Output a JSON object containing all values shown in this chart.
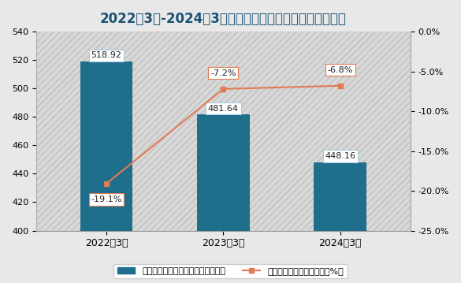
{
  "title": "2022年3月-2024年3月我国办公楼竣工面积累计值及增速",
  "categories": [
    "2022年3月",
    "2023年3月",
    "2024年3月"
  ],
  "bar_values": [
    518.92,
    481.64,
    448.16
  ],
  "bar_color": "#1e6e8c",
  "line_values": [
    -19.1,
    -7.2,
    -6.8
  ],
  "line_color": "#e07b54",
  "left_ylim": [
    400,
    540
  ],
  "left_yticks": [
    400,
    420,
    440,
    460,
    480,
    500,
    520,
    540
  ],
  "right_ylim": [
    -25.0,
    0.0
  ],
  "right_yticks": [
    -25.0,
    -20.0,
    -15.0,
    -10.0,
    -5.0,
    0.0
  ],
  "right_yticklabels": [
    "-25.0%",
    "-20.0%",
    "-15.0%",
    "-10.0%",
    "-5.0%",
    "0.0%"
  ],
  "bar_label_values": [
    "518.92",
    "481.64",
    "448.16"
  ],
  "line_label_values": [
    "-19.1%",
    "-7.2%",
    "-6.8%"
  ],
  "legend_bar": "办公楼竣工面积累计值（万平方米）",
  "legend_line": "办公楼竣工面积累计增速（%）",
  "title_color": "#1a5276",
  "title_fontsize": 12,
  "bg_color": "#e8e8e8",
  "plot_bg_color": "#e0e0e0"
}
